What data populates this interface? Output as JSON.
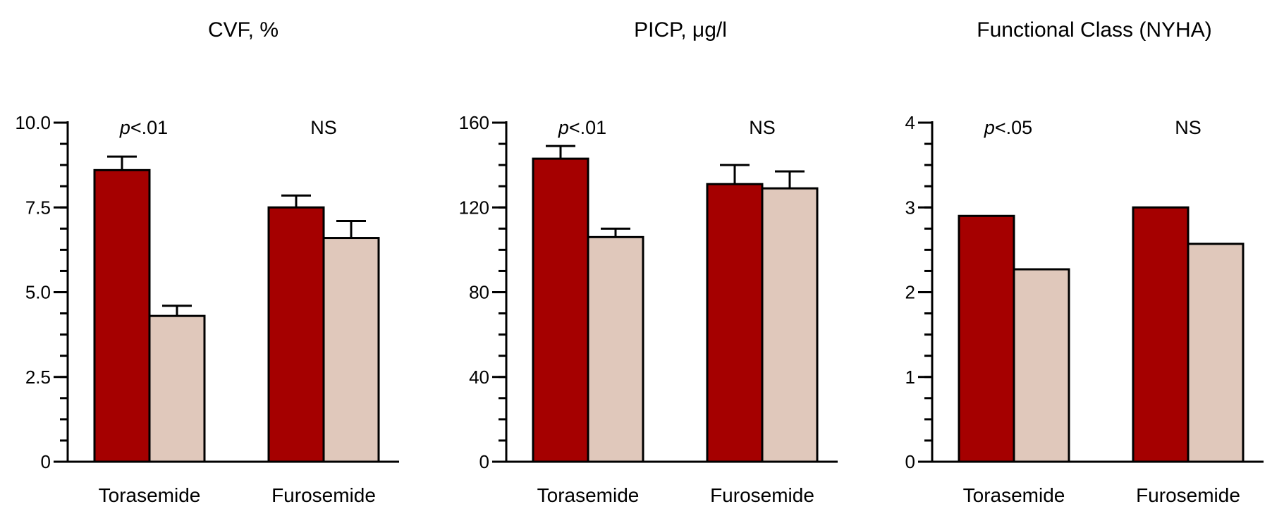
{
  "colors": {
    "baseline": "#a50000",
    "followup": "#e0c8bb",
    "stroke": "#000000"
  },
  "chart_data": [
    {
      "type": "bar",
      "title": "CVF, %",
      "categories": [
        "Torasemide",
        "Furosemide"
      ],
      "series": [
        {
          "values": [
            8.6,
            7.5
          ],
          "errors": [
            0.4,
            0.35
          ]
        },
        {
          "values": [
            4.3,
            6.6
          ],
          "errors": [
            0.3,
            0.5
          ]
        }
      ],
      "ylim": [
        0,
        10
      ],
      "yticks": [
        0,
        2.5,
        5.0,
        7.5,
        10.0
      ],
      "ytick_labels": [
        "0",
        "2.5",
        "5.0",
        "7.5",
        "10.0"
      ],
      "minor_step": 0.625,
      "annotations": [
        {
          "category": "Torasemide",
          "p_italic": "p",
          "text": "<.01"
        },
        {
          "category": "Furosemide",
          "p_italic": "",
          "text": "NS"
        }
      ]
    },
    {
      "type": "bar",
      "title": "PICP, μg/l",
      "categories": [
        "Torasemide",
        "Furosemide"
      ],
      "series": [
        {
          "values": [
            143,
            131
          ],
          "errors": [
            6,
            9
          ]
        },
        {
          "values": [
            106,
            129
          ],
          "errors": [
            4,
            8
          ]
        }
      ],
      "ylim": [
        0,
        160
      ],
      "yticks": [
        0,
        40,
        80,
        120,
        160
      ],
      "ytick_labels": [
        "0",
        "40",
        "80",
        "120",
        "160"
      ],
      "minor_step": 10,
      "annotations": [
        {
          "category": "Torasemide",
          "p_italic": "p",
          "text": "<.01"
        },
        {
          "category": "Furosemide",
          "p_italic": "",
          "text": "NS"
        }
      ]
    },
    {
      "type": "bar",
      "title": "Functional Class (NYHA)",
      "categories": [
        "Torasemide",
        "Furosemide"
      ],
      "series": [
        {
          "values": [
            2.9,
            3.0
          ],
          "errors": [
            0,
            0
          ]
        },
        {
          "values": [
            2.27,
            2.57
          ],
          "errors": [
            0,
            0
          ]
        }
      ],
      "ylim": [
        0,
        4
      ],
      "yticks": [
        0,
        1,
        2,
        3,
        4
      ],
      "ytick_labels": [
        "0",
        "1",
        "2",
        "3",
        "4"
      ],
      "minor_step": 0.25,
      "annotations": [
        {
          "category": "Torasemide",
          "p_italic": "p",
          "text": "<.05"
        },
        {
          "category": "Furosemide",
          "p_italic": "",
          "text": "NS"
        }
      ]
    }
  ]
}
